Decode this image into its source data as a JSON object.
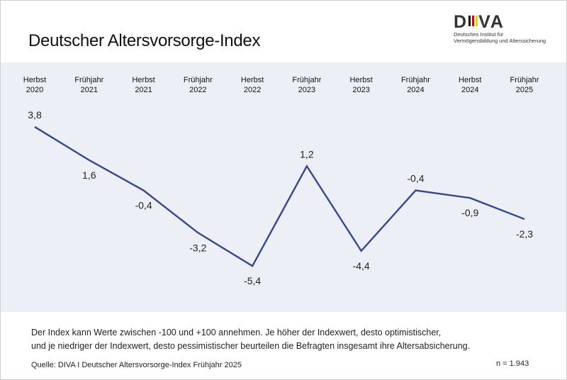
{
  "title": "Deutscher Altersvorsorge-Index",
  "logo": {
    "word_left": "D",
    "word_right": "VA",
    "subtitle_line1": "Deutsches Institut für",
    "subtitle_line2": "Vermögensbildung und Alterssicherung",
    "flag_colors": [
      "#000000",
      "#dd0000",
      "#ffce00"
    ]
  },
  "chart_data": {
    "type": "line",
    "title": "Deutscher Altersvorsorge-Index",
    "categories": [
      [
        "Herbst",
        "2020"
      ],
      [
        "Frühjahr",
        "2021"
      ],
      [
        "Herbst",
        "2021"
      ],
      [
        "Frühjahr",
        "2022"
      ],
      [
        "Herbst",
        "2022"
      ],
      [
        "Frühjahr",
        "2023"
      ],
      [
        "Herbst",
        "2023"
      ],
      [
        "Frühjahr",
        "2024"
      ],
      [
        "Herbst",
        "2024"
      ],
      [
        "Frühjahr",
        "2025"
      ]
    ],
    "series": [
      {
        "values": [
          3.8,
          1.6,
          -0.4,
          -3.2,
          -5.4,
          1.2,
          -4.4,
          -0.4,
          -0.9,
          -2.3
        ],
        "labels": [
          "3,8",
          "1,6",
          "-0,4",
          "-3,2",
          "-5,4",
          "1,2",
          "-4,4",
          "-0,4",
          "-0,9",
          "-2,3"
        ],
        "color": "#34478f"
      }
    ],
    "ylim": [
      -6,
      4.5
    ],
    "grid": false,
    "xaxis_position": "top",
    "xlabel": "",
    "ylabel": ""
  },
  "note": {
    "line1": "Der Index kann Werte zwischen -100 und +100 annehmen. Je höher der Indexwert, desto optimistischer,",
    "line2": "und je niedriger der Indexwert, desto pessimistischer beurteilen die Befragten insgesamt ihre Altersabsicherung."
  },
  "source": "Quelle: DIVA I Deutscher Altersvorsorge-Index Frühjahr 2025",
  "sample_size": "n =  1.943",
  "colors": {
    "band": "#eceff6",
    "line": "#34478f"
  }
}
